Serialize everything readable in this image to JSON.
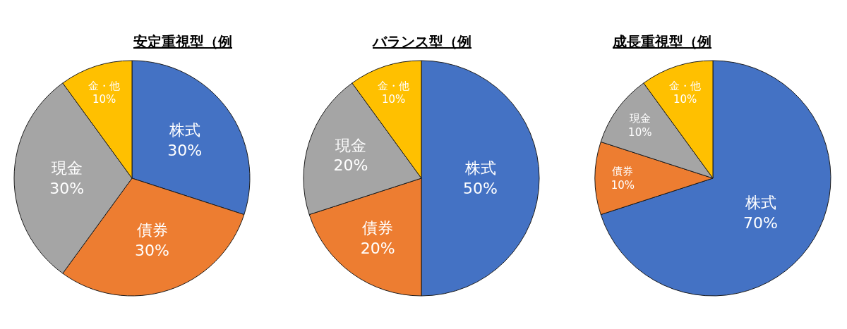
{
  "chart_data": [
    {
      "type": "pie",
      "title": "安定重視型（例",
      "categories": [
        "株式",
        "債券",
        "現金",
        "金・他"
      ],
      "values": [
        30,
        30,
        30,
        10
      ],
      "value_labels": [
        "30%",
        "30%",
        "30%",
        "10%"
      ],
      "colors": [
        "#4472c4",
        "#ed7d31",
        "#a5a5a5",
        "#ffc000"
      ]
    },
    {
      "type": "pie",
      "title": "バランス型（例",
      "categories": [
        "株式",
        "債券",
        "現金",
        "金・他"
      ],
      "values": [
        50,
        20,
        20,
        10
      ],
      "value_labels": [
        "50%",
        "20%",
        "20%",
        "10%"
      ],
      "colors": [
        "#4472c4",
        "#ed7d31",
        "#a5a5a5",
        "#ffc000"
      ]
    },
    {
      "type": "pie",
      "title": "成長重視型（例",
      "categories": [
        "株式",
        "債券",
        "現金",
        "金・他"
      ],
      "values": [
        70,
        10,
        10,
        10
      ],
      "value_labels": [
        "70%",
        "10%",
        "10%",
        "10%"
      ],
      "colors": [
        "#4472c4",
        "#ed7d31",
        "#a5a5a5",
        "#ffc000"
      ]
    }
  ]
}
